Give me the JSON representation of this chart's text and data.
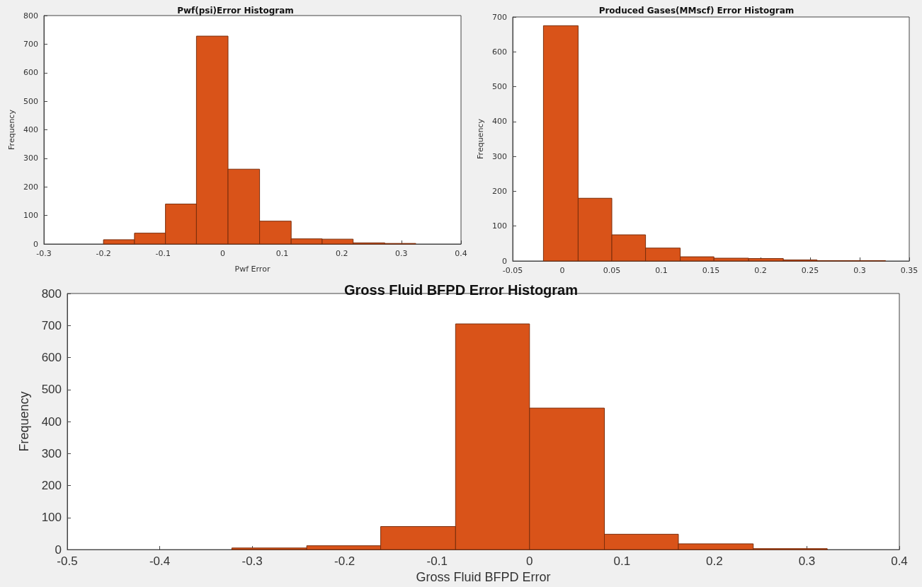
{
  "chart_data": [
    {
      "type": "histogram",
      "title": "Pwf(psi)Error Histogram",
      "xlabel": "Pwf Error",
      "ylabel": "Frequency",
      "color": "#d95319",
      "bins": [
        -0.2,
        -0.148,
        -0.096,
        -0.044,
        0.009,
        0.062,
        0.115,
        0.167,
        0.219,
        0.272,
        0.324
      ],
      "values": [
        15,
        38,
        140,
        728,
        262,
        80,
        18,
        17,
        4,
        2
      ],
      "xlim": [
        -0.3,
        0.4
      ],
      "xticks": [
        -0.3,
        -0.2,
        -0.1,
        0,
        0.1,
        0.2,
        0.3,
        0.4
      ],
      "ylim": [
        0,
        800
      ],
      "yticks": [
        0,
        100,
        200,
        300,
        400,
        500,
        600,
        700,
        800
      ],
      "grid": false
    },
    {
      "type": "histogram",
      "title": "Produced Gases(MMscf) Error Histogram",
      "ylabel": "Frequency",
      "color": "#d95319",
      "bins": [
        -0.019,
        0.016,
        0.05,
        0.084,
        0.119,
        0.153,
        0.188,
        0.223,
        0.257,
        0.292,
        0.326
      ],
      "values": [
        675,
        180,
        75,
        37,
        12,
        8,
        7,
        3,
        1,
        1
      ],
      "xlim": [
        -0.05,
        0.35
      ],
      "xticks": [
        -0.05,
        0,
        0.05,
        0.1,
        0.15,
        0.2,
        0.25,
        0.3,
        0.35
      ],
      "ylim": [
        0,
        700
      ],
      "yticks": [
        0,
        100,
        200,
        300,
        400,
        500,
        600,
        700
      ],
      "grid": false
    },
    {
      "type": "histogram",
      "title": "Gross Fluid BFPD Error Histogram",
      "xlabel": "Gross Fluid BFPD Error",
      "ylabel": "Frequency",
      "color": "#d95319",
      "bins": [
        -0.322,
        -0.241,
        -0.161,
        -0.08,
        0,
        0.081,
        0.161,
        0.242,
        0.322
      ],
      "values": [
        5,
        12,
        72,
        705,
        442,
        48,
        18,
        3
      ],
      "xlim": [
        -0.5,
        0.4
      ],
      "xticks": [
        -0.5,
        -0.4,
        -0.3,
        -0.2,
        -0.1,
        0,
        0.1,
        0.2,
        0.3,
        0.4
      ],
      "ylim": [
        0,
        800
      ],
      "yticks": [
        0,
        100,
        200,
        300,
        400,
        500,
        600,
        700,
        800
      ],
      "grid": false
    }
  ]
}
